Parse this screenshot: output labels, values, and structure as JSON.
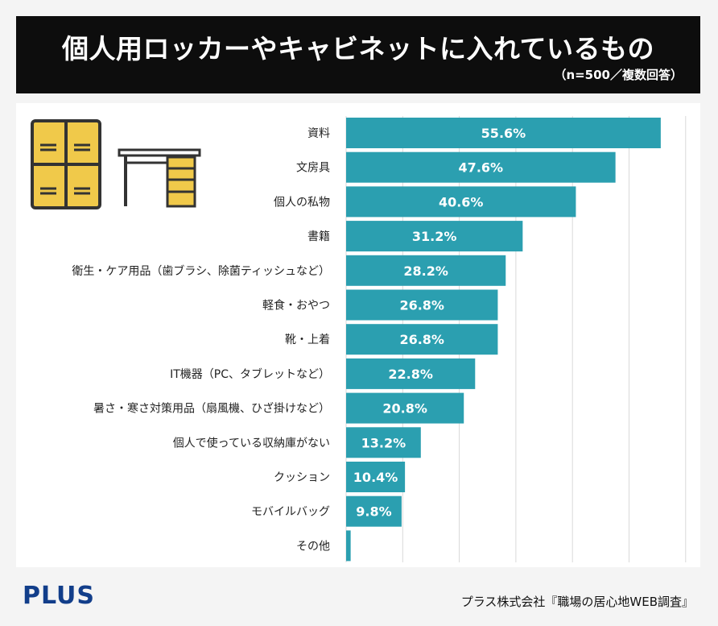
{
  "header": {
    "title": "個人用ロッカーやキャビネットに入れているもの",
    "subtitle": "（n=500／複数回答）"
  },
  "footer": {
    "logo": "PLUS",
    "source": "プラス株式会社『職場の居心地WEB調査』"
  },
  "colors": {
    "bar": "#2b9fb0",
    "grid": "#d9d9d9",
    "locker": "#f0c94a",
    "outline": "#333333"
  },
  "icons": [
    "locker-icon",
    "desk-icon"
  ],
  "chart_data": {
    "type": "bar",
    "orientation": "horizontal",
    "title": "個人用ロッカーやキャビネットに入れているもの",
    "subtitle": "（n=500／複数回答）",
    "unit": "%",
    "xlim": [
      0,
      60
    ],
    "grid": true,
    "categories": [
      "資料",
      "文房具",
      "個人の私物",
      "書籍",
      "衛生・ケア用品（歯ブラシ、除菌ティッシュなど）",
      "軽食・おやつ",
      "靴・上着",
      "IT機器（PC、タブレットなど）",
      "暑さ・寒さ対策用品（扇風機、ひざ掛けなど）",
      "個人で使っている収納庫がない",
      "クッション",
      "モバイルバッグ",
      "その他"
    ],
    "values": [
      55.6,
      47.6,
      40.6,
      31.2,
      28.2,
      26.8,
      26.8,
      22.8,
      20.8,
      13.2,
      10.4,
      9.8,
      0.8
    ],
    "labels": [
      "55.6%",
      "47.6%",
      "40.6%",
      "31.2%",
      "28.2%",
      "26.8%",
      "26.8%",
      "22.8%",
      "20.8%",
      "13.2%",
      "10.4%",
      "9.8%",
      ""
    ]
  }
}
